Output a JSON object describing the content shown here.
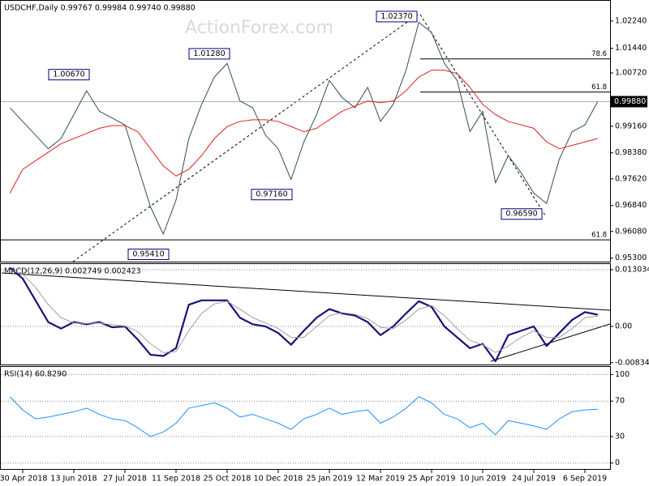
{
  "chart_data": [
    {
      "type": "line",
      "title": "USDCHF,Daily 0.99767 0.99984 0.99740 0.99880",
      "watermark": "ActionForex.com",
      "series": [
        {
          "color": "#2f4f4f",
          "values": [
            0.997,
            0.993,
            0.989,
            0.985,
            0.988,
            0.995,
            1.002,
            0.996,
            0.994,
            0.992,
            0.98,
            0.968,
            0.96,
            0.97,
            0.988,
            0.998,
            1.006,
            1.01,
            0.999,
            0.997,
            0.989,
            0.985,
            0.976,
            0.987,
            0.995,
            1.005,
            1.0,
            0.997,
            1.003,
            0.993,
            0.998,
            1.008,
            1.022,
            1.019,
            1.01,
            1.005,
            0.99,
            0.996,
            0.975,
            0.983,
            0.978,
            0.972,
            0.969,
            0.982,
            0.99,
            0.992,
            0.9988
          ]
        },
        {
          "color": "#e02020",
          "values": [
            0.972,
            0.979,
            0.9815,
            0.984,
            0.9865,
            0.988,
            0.9895,
            0.991,
            0.9918,
            0.9918,
            0.99,
            0.985,
            0.98,
            0.977,
            0.979,
            0.983,
            0.988,
            0.9915,
            0.993,
            0.9935,
            0.9935,
            0.993,
            0.9915,
            0.99,
            0.991,
            0.9935,
            0.996,
            0.9975,
            0.999,
            0.9985,
            0.999,
            1.002,
            1.006,
            1.008,
            1.008,
            1.007,
            1.003,
            0.998,
            0.995,
            0.993,
            0.992,
            0.991,
            0.987,
            0.985,
            0.986,
            0.987,
            0.988
          ]
        }
      ],
      "ylim": [
        0.95197,
        1.02831
      ],
      "yticks": [
        {
          "value": 1.0224,
          "label": "1.02240"
        },
        {
          "value": 1.0144,
          "label": "1.01440"
        },
        {
          "value": 1.0072,
          "label": "1.00720"
        },
        {
          "value": 0.9916,
          "label": "0.99160"
        },
        {
          "value": 0.9838,
          "label": "0.98380"
        },
        {
          "value": 0.9762,
          "label": "0.97620"
        },
        {
          "value": 0.9684,
          "label": "0.96840"
        },
        {
          "value": 0.9608,
          "label": "0.96080"
        },
        {
          "value": 0.953,
          "label": "0.95300"
        }
      ],
      "last": {
        "value": 0.9988,
        "label": "0.99880"
      },
      "levels": [
        {
          "ratio": 78.6,
          "price": 1.0113
        },
        {
          "ratio": 61.8,
          "price": 1.0016
        },
        {
          "ratio": 61.8,
          "price": 0.95835
        }
      ],
      "annotations": [
        {
          "value": 1.0237,
          "label": "1.02370"
        },
        {
          "value": 1.0128,
          "label": "1.01280"
        },
        {
          "value": 1.0067,
          "label": "1.00670"
        },
        {
          "value": 0.9716,
          "label": "0.97160"
        },
        {
          "value": 0.9659,
          "label": "0.96590"
        },
        {
          "value": 0.9541,
          "label": "0.95410"
        }
      ],
      "grid": false
    },
    {
      "type": "line",
      "title": "MACD(12,26,9) 0.002749 0.002423",
      "series": [
        {
          "color": "#14147a",
          "values": [
            0.0135,
            0.011,
            0.006,
            0.001,
            -0.0005,
            0.001,
            0.0005,
            0.001,
            -0.0002,
            0.0,
            -0.003,
            -0.0065,
            -0.0068,
            -0.005,
            0.005,
            0.006,
            0.006,
            0.006,
            0.002,
            0.0005,
            0.0,
            -0.0015,
            -0.0042,
            -0.001,
            0.002,
            0.004,
            0.003,
            0.0025,
            0.001,
            -0.002,
            0.0,
            0.003,
            0.0058,
            0.0045,
            0.0,
            -0.0025,
            -0.005,
            -0.004,
            -0.008,
            -0.002,
            -0.001,
            0.0,
            -0.0045,
            -0.0015,
            0.0015,
            0.0033,
            0.0027
          ]
        },
        {
          "color": "#a0a0a0",
          "values": [
            0.013,
            0.012,
            0.009,
            0.005,
            0.002,
            0.0008,
            0.0007,
            0.0008,
            0.0004,
            0.0001,
            -0.0012,
            -0.004,
            -0.006,
            -0.0058,
            -0.001,
            0.003,
            0.0052,
            0.0058,
            0.004,
            0.002,
            0.0008,
            -0.0005,
            -0.0025,
            -0.0025,
            0.0,
            0.0025,
            0.0032,
            0.0028,
            0.0018,
            -0.0002,
            -0.0005,
            0.0015,
            0.004,
            0.0048,
            0.0025,
            -0.0005,
            -0.0032,
            -0.0042,
            -0.006,
            -0.0045,
            -0.0025,
            -0.001,
            -0.0025,
            -0.0025,
            -0.0005,
            0.002,
            0.0024
          ]
        }
      ],
      "ylim": [
        -0.00875,
        0.01434
      ],
      "yticks": [
        0.013034,
        {
          "value": 0,
          "label": "0.00"
        },
        -0.00834
      ],
      "grid": true
    },
    {
      "type": "line",
      "title": "RSI(14) 60.8290",
      "categories": [
        null,
        "30 Apr 2018",
        null,
        null,
        null,
        "13 Jun 2018",
        null,
        null,
        null,
        "27 Jul 2018",
        null,
        null,
        null,
        "11 Sep 2018",
        null,
        null,
        null,
        "25 Oct 2018",
        null,
        null,
        null,
        "10 Dec 2018",
        null,
        null,
        null,
        "25 Jan 2019",
        null,
        null,
        null,
        "12 Mar 2019",
        null,
        null,
        null,
        "25 Apr 2019",
        null,
        null,
        null,
        "10 Jun 2019",
        null,
        null,
        null,
        "24 Jul 2019",
        null,
        null,
        null,
        "6 Sep 2019",
        null
      ],
      "series": [
        {
          "color": "#1e90ff",
          "values": [
            75,
            60,
            50,
            52,
            55,
            58,
            62,
            55,
            50,
            48,
            40,
            30,
            35,
            45,
            62,
            65,
            68,
            62,
            52,
            55,
            50,
            45,
            38,
            50,
            55,
            62,
            55,
            58,
            60,
            45,
            52,
            62,
            75,
            68,
            55,
            50,
            40,
            45,
            32,
            48,
            45,
            42,
            38,
            50,
            58,
            60,
            60.83
          ]
        }
      ],
      "ylim": [
        -7.6,
        108.6
      ],
      "yticks": [
        100,
        70,
        30,
        0
      ],
      "grid": true
    }
  ]
}
